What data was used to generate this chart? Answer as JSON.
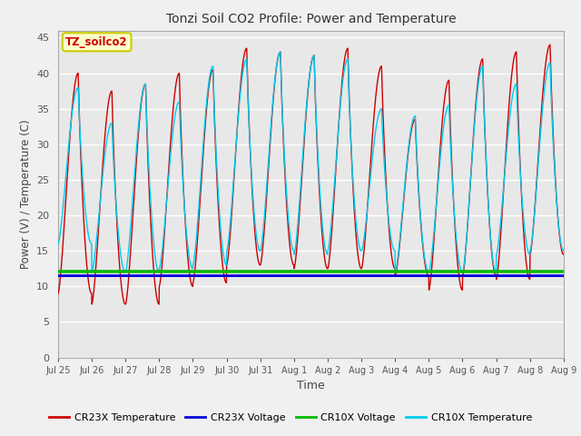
{
  "title": "Tonzi Soil CO2 Profile: Power and Temperature",
  "xlabel": "Time",
  "ylabel": "Power (V) / Temperature (C)",
  "ylim": [
    0,
    46
  ],
  "yticks": [
    0,
    5,
    10,
    15,
    20,
    25,
    30,
    35,
    40,
    45
  ],
  "xtick_labels": [
    "Jul 25",
    "Jul 26",
    "Jul 27",
    "Jul 28",
    "Jul 29",
    "Jul 30",
    "Jul 31",
    "Aug 1",
    "Aug 2",
    "Aug 3",
    "Aug 4",
    "Aug 5",
    "Aug 6",
    "Aug 7",
    "Aug 8",
    "Aug 9"
  ],
  "cr23x_temp_color": "#cc0000",
  "cr23x_voltage_color": "#0000dd",
  "cr10x_voltage_color": "#00bb00",
  "cr10x_temp_color": "#00ccee",
  "voltage_cr23x": 11.5,
  "voltage_cr10x": 12.1,
  "fig_bg_color": "#f0f0f0",
  "plot_bg_color": "#e8e8e8",
  "grid_color": "#ffffff",
  "annotation_text": "TZ_soilco2",
  "annotation_fg": "#cc0000",
  "annotation_bg": "#ffffcc",
  "annotation_border": "#cccc00",
  "legend_labels": [
    "CR23X Temperature",
    "CR23X Voltage",
    "CR10X Voltage",
    "CR10X Temperature"
  ],
  "legend_colors": [
    "#cc0000",
    "#0000dd",
    "#00bb00",
    "#00ccee"
  ],
  "day_peaks_cr23x": [
    40.0,
    37.5,
    38.5,
    40.0,
    40.5,
    43.5,
    43.0,
    42.5,
    43.5,
    41.0,
    33.5,
    39.0,
    42.0,
    43.0,
    44.0
  ],
  "day_mins_cr23x": [
    9.0,
    7.5,
    7.5,
    10.0,
    10.5,
    13.0,
    13.0,
    12.5,
    12.5,
    12.5,
    11.5,
    9.5,
    11.5,
    11.0,
    14.5
  ],
  "day_peaks_cr10x": [
    38.0,
    33.0,
    38.5,
    36.0,
    41.0,
    42.0,
    43.0,
    42.5,
    42.0,
    35.0,
    34.0,
    35.5,
    41.0,
    38.5,
    41.5
  ],
  "day_mins_cr10x": [
    16.0,
    12.0,
    12.0,
    12.5,
    13.0,
    15.0,
    15.0,
    14.5,
    15.0,
    15.0,
    12.0,
    12.0,
    12.0,
    14.5,
    15.0
  ]
}
